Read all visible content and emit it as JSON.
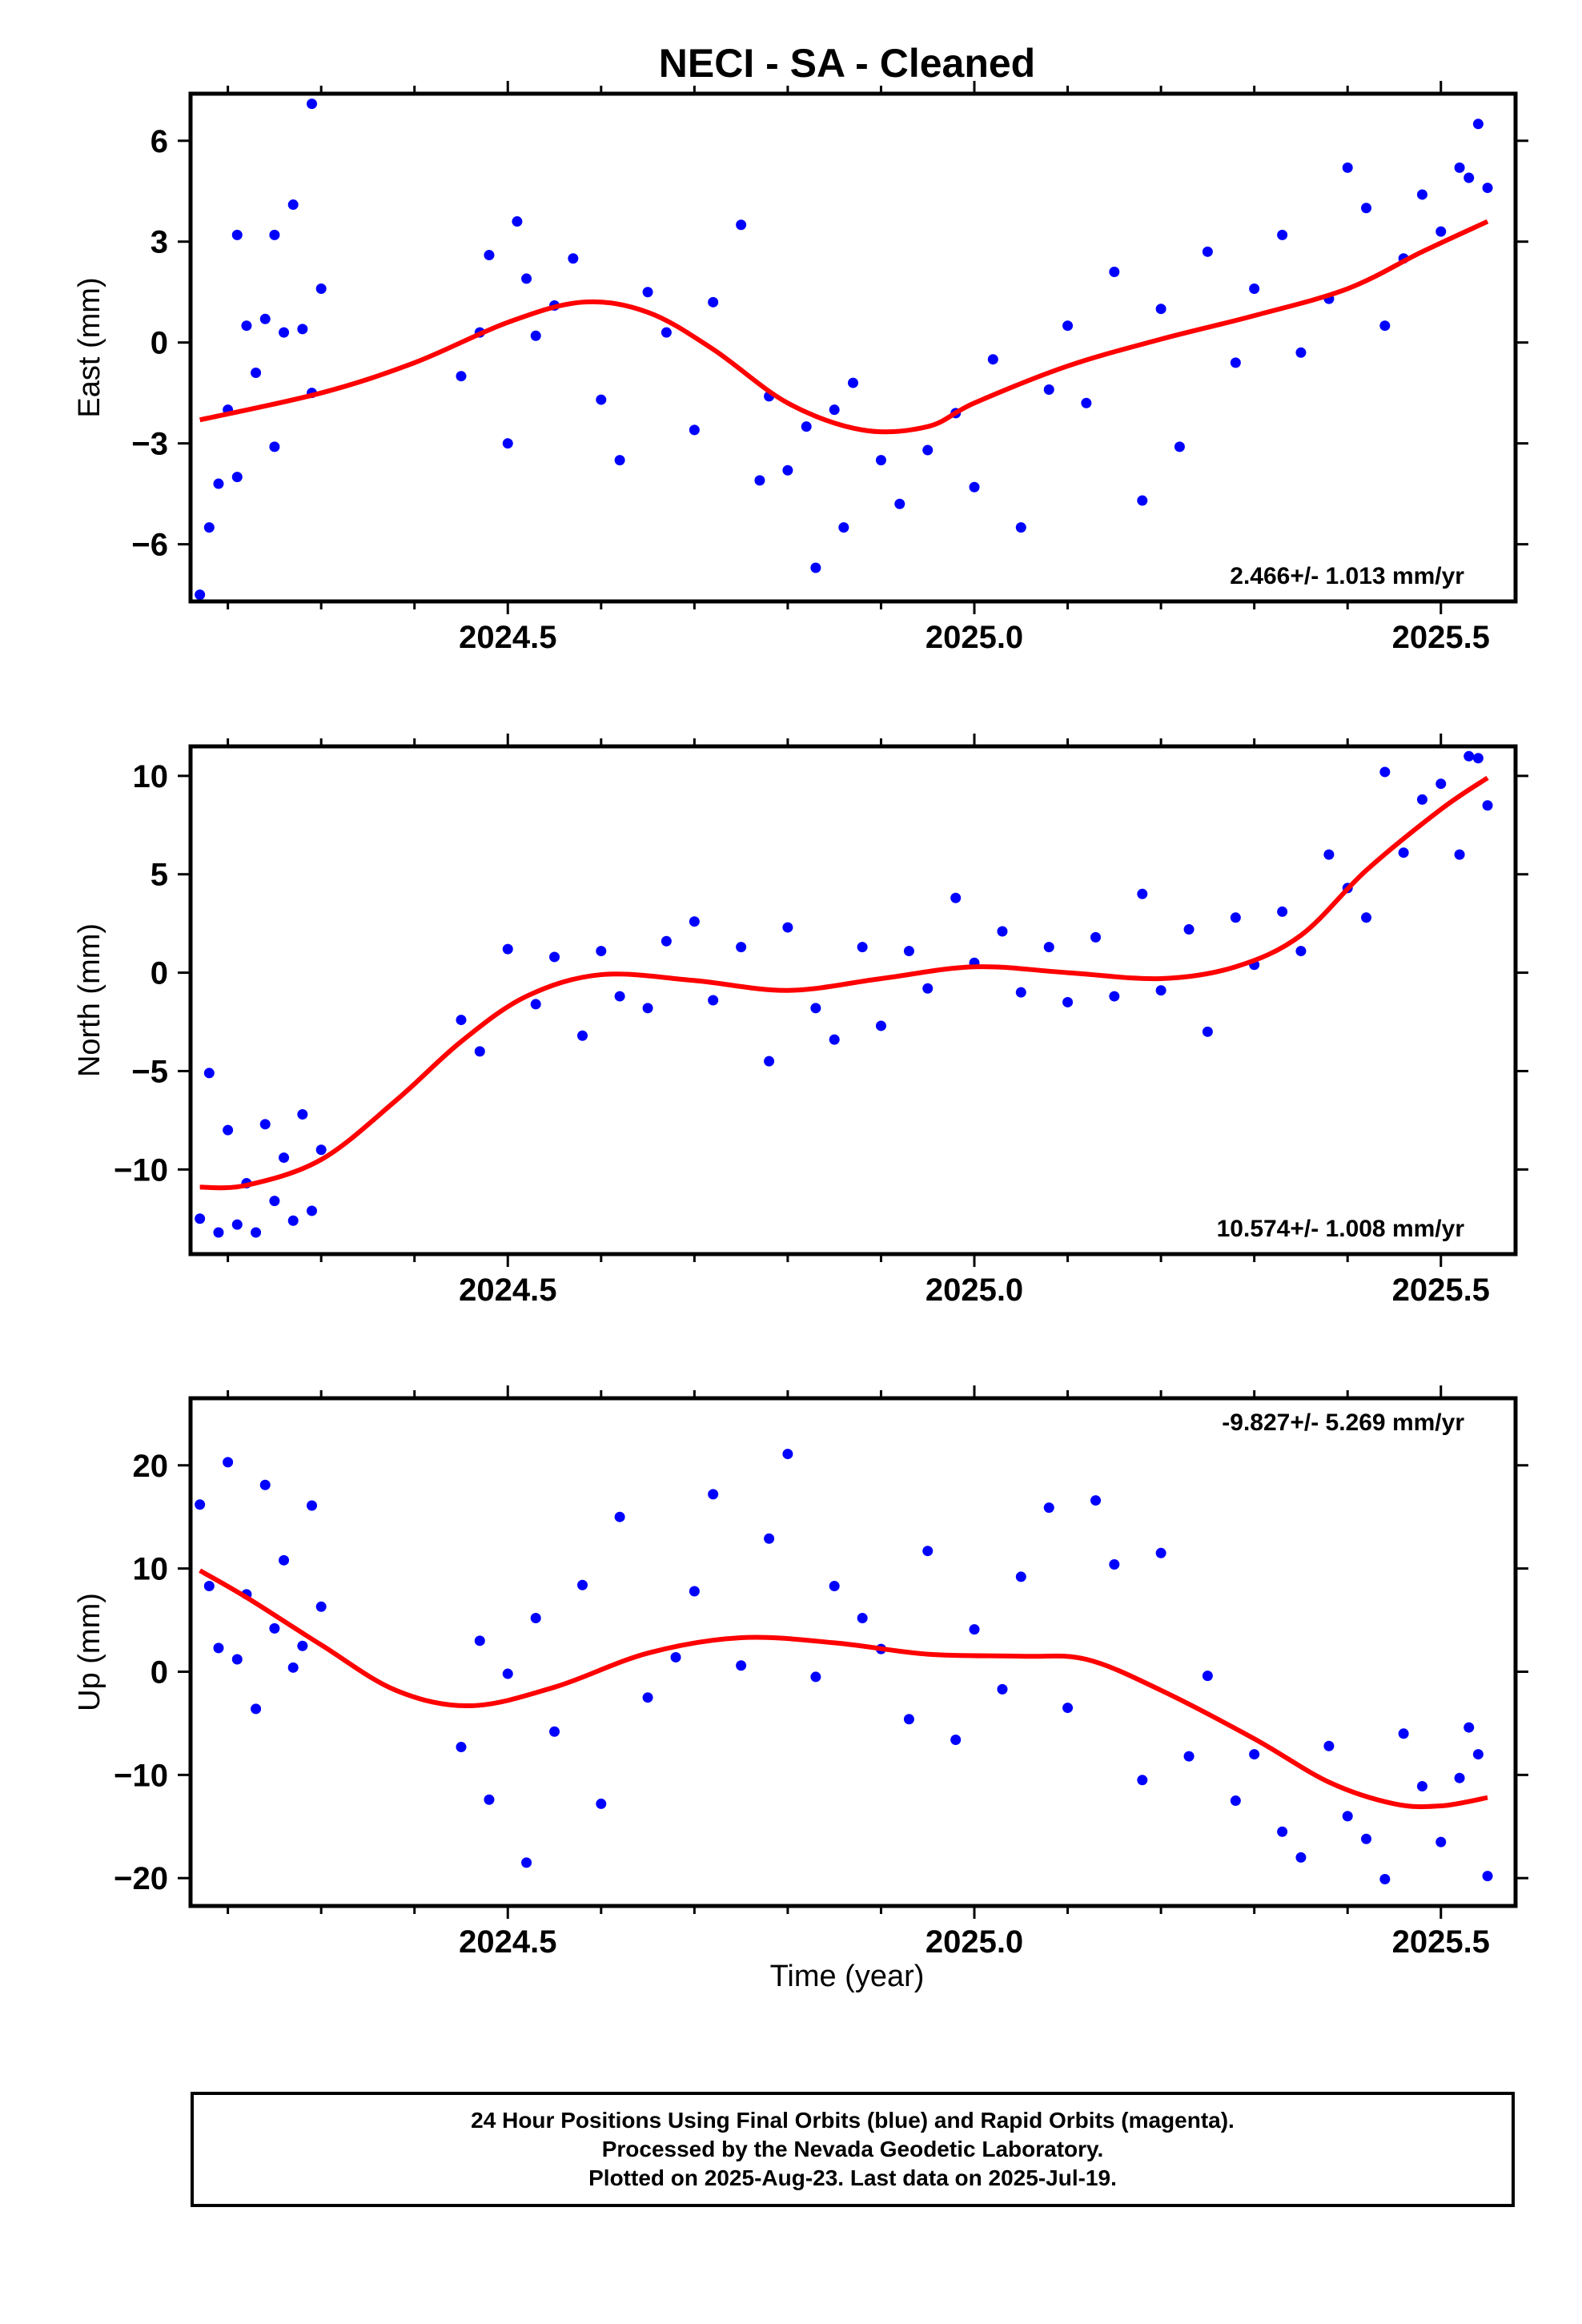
{
  "title": "NECI  - SA - Cleaned",
  "footer": {
    "line1": "24 Hour Positions Using Final Orbits (blue) and Rapid Orbits (magenta).",
    "line2": "Processed by the Nevada Geodetic Laboratory.",
    "line3": "Plotted on 2025-Aug-23. Last data on 2025-Jul-19."
  },
  "colors": {
    "final_orbits": "#0000ff",
    "fit": "#ff0000",
    "frame": "#000000"
  },
  "chart_data": [
    {
      "type": "scatter",
      "name": "east",
      "ylabel": "East (mm)",
      "xlabel": "",
      "xlim": [
        2024.16,
        2025.58
      ],
      "ylim": [
        -7.7,
        7.4
      ],
      "xticks": [
        "2024.5",
        "2025.0",
        "2025.5"
      ],
      "yticks": [
        -6,
        -3,
        0,
        3,
        6
      ],
      "rate_label": "2.466+/- 1.013 mm/yr",
      "rate_position": "bottom-right",
      "fit": {
        "x": [
          2024.17,
          2024.3,
          2024.4,
          2024.5,
          2024.58,
          2024.65,
          2024.72,
          2024.8,
          2024.88,
          2024.95,
          2025.0,
          2025.1,
          2025.2,
          2025.3,
          2025.4,
          2025.48,
          2025.55
        ],
        "y": [
          -2.3,
          -1.5,
          -0.6,
          0.6,
          1.2,
          0.9,
          -0.2,
          -1.8,
          -2.6,
          -2.5,
          -1.8,
          -0.7,
          0.1,
          0.8,
          1.6,
          2.7,
          3.6
        ]
      },
      "points": {
        "x": [
          2024.17,
          2024.18,
          2024.19,
          2024.2,
          2024.21,
          2024.21,
          2024.22,
          2024.23,
          2024.24,
          2024.25,
          2024.25,
          2024.26,
          2024.27,
          2024.28,
          2024.29,
          2024.29,
          2024.3,
          2024.45,
          2024.47,
          2024.48,
          2024.5,
          2024.51,
          2024.52,
          2024.53,
          2024.55,
          2024.57,
          2024.6,
          2024.62,
          2024.65,
          2024.67,
          2024.7,
          2024.72,
          2024.75,
          2024.77,
          2024.78,
          2024.8,
          2024.82,
          2024.83,
          2024.85,
          2024.86,
          2024.87,
          2024.9,
          2024.92,
          2024.95,
          2024.98,
          2025.0,
          2025.02,
          2025.05,
          2025.08,
          2025.1,
          2025.12,
          2025.15,
          2025.18,
          2025.2,
          2025.22,
          2025.25,
          2025.28,
          2025.3,
          2025.33,
          2025.35,
          2025.38,
          2025.4,
          2025.42,
          2025.44,
          2025.46,
          2025.48,
          2025.5,
          2025.52,
          2025.53,
          2025.54,
          2025.55
        ],
        "y": [
          -7.5,
          -5.5,
          -4.2,
          -2.0,
          -4.0,
          3.2,
          0.5,
          -0.9,
          0.7,
          -3.1,
          3.2,
          0.3,
          4.1,
          0.4,
          -1.5,
          7.1,
          1.6,
          -1.0,
          0.3,
          2.6,
          -3.0,
          3.6,
          1.9,
          0.2,
          1.1,
          2.5,
          -1.7,
          -3.5,
          1.5,
          0.3,
          -2.6,
          1.2,
          3.5,
          -4.1,
          -1.6,
          -3.8,
          -2.5,
          -6.7,
          -2.0,
          -5.5,
          -1.2,
          -3.5,
          -4.8,
          -3.2,
          -2.1,
          -4.3,
          -0.5,
          -5.5,
          -1.4,
          0.5,
          -1.8,
          2.1,
          -4.7,
          1.0,
          -3.1,
          2.7,
          -0.6,
          1.6,
          3.2,
          -0.3,
          1.3,
          5.2,
          4.0,
          0.5,
          2.5,
          4.4,
          3.3,
          5.2,
          4.9,
          6.5,
          4.6
        ]
      }
    },
    {
      "type": "scatter",
      "name": "north",
      "ylabel": "North (mm)",
      "xlabel": "",
      "xlim": [
        2024.16,
        2025.58
      ],
      "ylim": [
        -14.3,
        11.5
      ],
      "xticks": [
        "2024.5",
        "2025.0",
        "2025.5"
      ],
      "yticks": [
        -10,
        -5,
        0,
        5,
        10
      ],
      "rate_label": "10.574+/- 1.008 mm/yr",
      "rate_position": "bottom-right",
      "fit": {
        "x": [
          2024.17,
          2024.22,
          2024.3,
          2024.38,
          2024.45,
          2024.52,
          2024.6,
          2024.7,
          2024.8,
          2024.9,
          2025.0,
          2025.1,
          2025.2,
          2025.28,
          2025.35,
          2025.42,
          2025.5,
          2025.55
        ],
        "y": [
          -10.9,
          -10.8,
          -9.5,
          -6.5,
          -3.5,
          -1.2,
          -0.1,
          -0.4,
          -0.9,
          -0.3,
          0.3,
          0.0,
          -0.3,
          0.3,
          1.9,
          5.2,
          8.3,
          9.9
        ]
      },
      "points": {
        "x": [
          2024.17,
          2024.18,
          2024.19,
          2024.2,
          2024.21,
          2024.22,
          2024.23,
          2024.24,
          2024.25,
          2024.26,
          2024.27,
          2024.28,
          2024.29,
          2024.3,
          2024.45,
          2024.47,
          2024.5,
          2024.53,
          2024.55,
          2024.58,
          2024.6,
          2024.62,
          2024.65,
          2024.67,
          2024.7,
          2024.72,
          2024.75,
          2024.78,
          2024.8,
          2024.83,
          2024.85,
          2024.88,
          2024.9,
          2024.93,
          2024.95,
          2024.98,
          2025.0,
          2025.03,
          2025.05,
          2025.08,
          2025.1,
          2025.13,
          2025.15,
          2025.18,
          2025.2,
          2025.23,
          2025.25,
          2025.28,
          2025.3,
          2025.33,
          2025.35,
          2025.38,
          2025.4,
          2025.42,
          2025.44,
          2025.46,
          2025.48,
          2025.5,
          2025.52,
          2025.53,
          2025.54,
          2025.55
        ],
        "y": [
          -12.5,
          -5.1,
          -13.2,
          -8.0,
          -12.8,
          -10.7,
          -13.2,
          -7.7,
          -11.6,
          -9.4,
          -12.6,
          -7.2,
          -12.1,
          -9.0,
          -2.4,
          -4.0,
          1.2,
          -1.6,
          0.8,
          -3.2,
          1.1,
          -1.2,
          -1.8,
          1.6,
          2.6,
          -1.4,
          1.3,
          -4.5,
          2.3,
          -1.8,
          -3.4,
          1.3,
          -2.7,
          1.1,
          -0.8,
          3.8,
          0.5,
          2.1,
          -1.0,
          1.3,
          -1.5,
          1.8,
          -1.2,
          4.0,
          -0.9,
          2.2,
          -3.0,
          2.8,
          0.4,
          3.1,
          1.1,
          6.0,
          4.3,
          2.8,
          10.2,
          6.1,
          8.8,
          9.6,
          6.0,
          11.0,
          10.9,
          8.5
        ]
      }
    },
    {
      "type": "scatter",
      "name": "up",
      "ylabel": "Up (mm)",
      "xlabel": "Time (year)",
      "xlim": [
        2024.16,
        2025.58
      ],
      "ylim": [
        -22.7,
        26.5
      ],
      "xticks": [
        "2024.5",
        "2025.0",
        "2025.5"
      ],
      "yticks": [
        -20,
        -10,
        0,
        10,
        20
      ],
      "rate_label": "-9.827+/- 5.269 mm/yr",
      "rate_position": "top-right",
      "fit": {
        "x": [
          2024.17,
          2024.22,
          2024.3,
          2024.38,
          2024.46,
          2024.55,
          2024.65,
          2024.75,
          2024.85,
          2024.95,
          2025.05,
          2025.12,
          2025.2,
          2025.3,
          2025.38,
          2025.45,
          2025.5,
          2025.55
        ],
        "y": [
          9.8,
          7.2,
          2.6,
          -1.8,
          -3.3,
          -1.5,
          1.8,
          3.3,
          2.8,
          1.7,
          1.5,
          1.2,
          -1.8,
          -6.5,
          -10.7,
          -12.8,
          -13.0,
          -12.2
        ]
      },
      "points": {
        "x": [
          2024.17,
          2024.18,
          2024.19,
          2024.2,
          2024.21,
          2024.22,
          2024.23,
          2024.24,
          2024.25,
          2024.26,
          2024.27,
          2024.28,
          2024.29,
          2024.3,
          2024.45,
          2024.47,
          2024.48,
          2024.5,
          2024.52,
          2024.53,
          2024.55,
          2024.58,
          2024.6,
          2024.62,
          2024.65,
          2024.68,
          2024.7,
          2024.72,
          2024.75,
          2024.78,
          2024.8,
          2024.83,
          2024.85,
          2024.88,
          2024.9,
          2024.93,
          2024.95,
          2024.98,
          2025.0,
          2025.03,
          2025.05,
          2025.08,
          2025.1,
          2025.13,
          2025.15,
          2025.18,
          2025.2,
          2025.23,
          2025.25,
          2025.28,
          2025.3,
          2025.33,
          2025.35,
          2025.38,
          2025.4,
          2025.42,
          2025.44,
          2025.46,
          2025.48,
          2025.5,
          2025.52,
          2025.53,
          2025.54,
          2025.55
        ],
        "y": [
          16.2,
          8.3,
          2.3,
          20.3,
          1.2,
          7.5,
          -3.6,
          18.1,
          4.2,
          10.8,
          0.4,
          2.5,
          16.1,
          6.3,
          -7.3,
          3.0,
          -12.4,
          -0.2,
          -18.5,
          5.2,
          -5.8,
          8.4,
          -12.8,
          15.0,
          -2.5,
          1.4,
          7.8,
          17.2,
          0.6,
          12.9,
          21.1,
          -0.5,
          8.3,
          5.2,
          2.2,
          -4.6,
          11.7,
          -6.6,
          4.1,
          -1.7,
          9.2,
          15.9,
          -3.5,
          16.6,
          10.4,
          -10.5,
          11.5,
          -8.2,
          -0.4,
          -12.5,
          -8.0,
          -15.5,
          -18.0,
          -7.2,
          -14.0,
          -16.2,
          -20.1,
          -6.0,
          -11.1,
          -16.5,
          -10.3,
          -5.4,
          -8.0,
          -19.8
        ]
      }
    }
  ]
}
